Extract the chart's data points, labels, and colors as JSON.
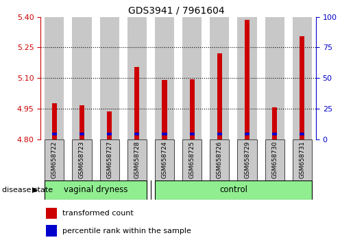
{
  "title": "GDS3941 / 7961604",
  "samples": [
    "GSM658722",
    "GSM658723",
    "GSM658727",
    "GSM658728",
    "GSM658724",
    "GSM658725",
    "GSM658726",
    "GSM658729",
    "GSM658730",
    "GSM658731"
  ],
  "transformed_counts": [
    4.975,
    4.967,
    4.935,
    5.155,
    5.09,
    5.095,
    5.22,
    5.385,
    4.955,
    5.305
  ],
  "percentile_values": [
    4.825,
    4.825,
    4.825,
    4.825,
    4.825,
    4.825,
    4.825,
    4.825,
    4.825,
    4.825
  ],
  "base": 4.8,
  "ylim_left": [
    4.8,
    5.4
  ],
  "ylim_right": [
    0,
    100
  ],
  "yticks_left": [
    4.8,
    4.95,
    5.1,
    5.25,
    5.4
  ],
  "yticks_right": [
    0,
    25,
    50,
    75,
    100
  ],
  "grid_lines": [
    4.95,
    5.1,
    5.25
  ],
  "groups": [
    {
      "label": "vaginal dryness",
      "start": 0,
      "end": 3
    },
    {
      "label": "control",
      "start": 4,
      "end": 9
    }
  ],
  "group_color": "#90EE90",
  "bar_color": "#CC0000",
  "percentile_color": "#0000CC",
  "bar_bg_color": "#C8C8C8",
  "bar_width": 0.7,
  "red_bar_width": 0.18,
  "blue_bar_width": 0.18,
  "blue_bar_height": 0.012,
  "legend_items": [
    {
      "label": "transformed count",
      "color": "#CC0000"
    },
    {
      "label": "percentile rank within the sample",
      "color": "#0000CC"
    }
  ],
  "disease_state_label": "disease state"
}
